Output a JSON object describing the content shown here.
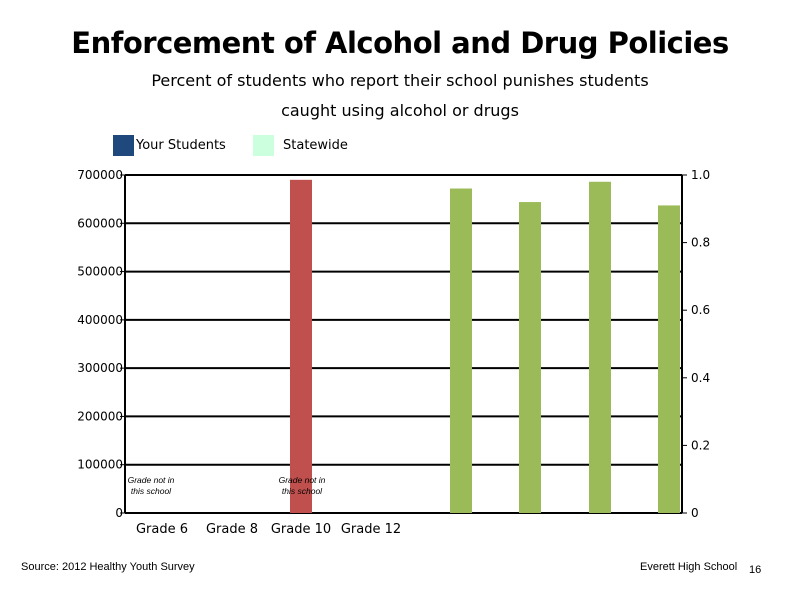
{
  "title": "Enforcement of Alcohol and Drug Policies",
  "subtitle_line1": "Percent of students who report their school punishes students",
  "subtitle_line2": "caught using alcohol or drugs",
  "legend": [
    {
      "label": "Your Students",
      "color": "#1F497D"
    },
    {
      "label": "Statewide",
      "color": "#CCFFDD"
    }
  ],
  "chart_data": {
    "type": "bar",
    "categories": [
      "Grade 6",
      "Grade 8",
      "Grade 10",
      "Grade 12"
    ],
    "left_axis": {
      "ylim": [
        0,
        700000
      ],
      "ticks": [
        0,
        100000,
        200000,
        300000,
        400000,
        500000,
        600000,
        700000
      ]
    },
    "right_axis": {
      "ylim": [
        0,
        1.0
      ],
      "ticks": [
        "0",
        "0.2",
        "0.4",
        "0.6",
        "0.8",
        "1.0"
      ]
    },
    "grid": true,
    "red_bar": {
      "value": 690000,
      "color": "#C0504D",
      "axis": "left"
    },
    "green_bars": {
      "values": [
        0.96,
        0.92,
        0.98,
        0.91
      ],
      "color": "#9BBB59",
      "axis": "right"
    },
    "annotations": [
      {
        "line1": "Grade not in",
        "line2": "this school"
      },
      {
        "line1": "Grade not in",
        "line2": "this school"
      }
    ]
  },
  "footer": {
    "source": "Source: 2012 Healthy Youth Survey",
    "school": "Everett High School",
    "page": "16"
  }
}
